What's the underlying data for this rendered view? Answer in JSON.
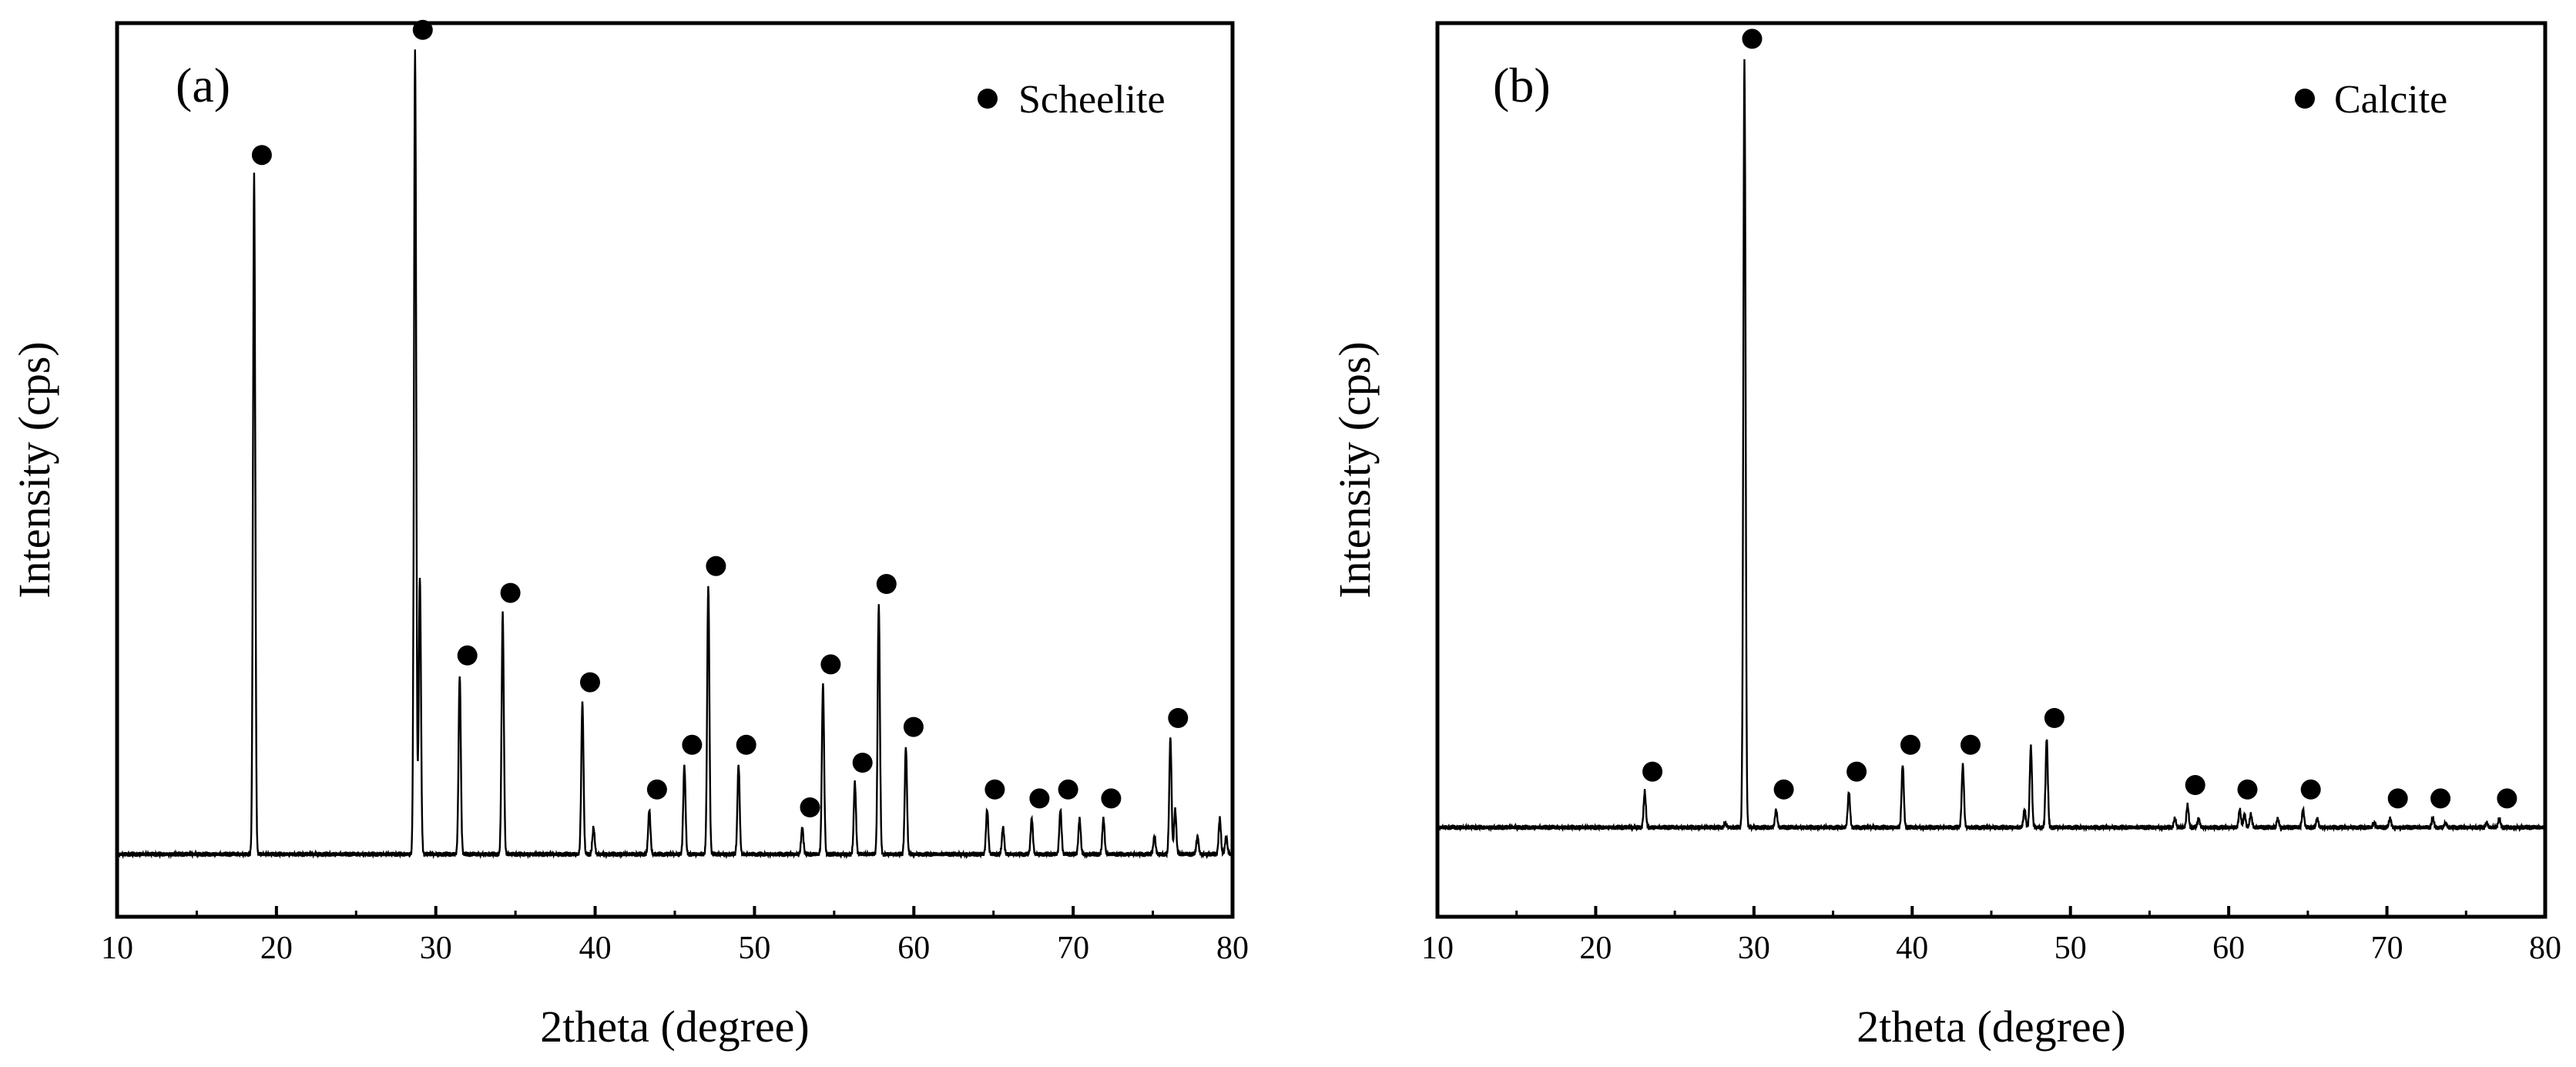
{
  "figure": {
    "background": "#ffffff",
    "line_color": "#000000"
  },
  "chart_data": [
    {
      "type": "line",
      "panel_label": "(a)",
      "legend": "Scheelite",
      "xlabel": "2theta (degree)",
      "ylabel": "Intensity (cps)",
      "xlim": [
        10,
        80
      ],
      "ylim": [
        0,
        100
      ],
      "x_ticks": [
        10,
        20,
        30,
        40,
        50,
        60,
        70,
        80
      ],
      "y_ticks_labeled": false,
      "grid": false,
      "baseline": 7,
      "peaks": [
        {
          "x": 18.6,
          "y": 83,
          "marked": true
        },
        {
          "x": 28.7,
          "y": 97,
          "marked": true
        },
        {
          "x": 29.0,
          "y": 38,
          "marked": false
        },
        {
          "x": 31.5,
          "y": 27,
          "marked": true
        },
        {
          "x": 34.2,
          "y": 34,
          "marked": true
        },
        {
          "x": 39.2,
          "y": 24,
          "marked": true
        },
        {
          "x": 39.9,
          "y": 10,
          "marked": false
        },
        {
          "x": 43.4,
          "y": 12,
          "marked": true
        },
        {
          "x": 45.6,
          "y": 17,
          "marked": true
        },
        {
          "x": 47.1,
          "y": 37,
          "marked": true
        },
        {
          "x": 49.0,
          "y": 17,
          "marked": true
        },
        {
          "x": 53.0,
          "y": 10,
          "marked": true
        },
        {
          "x": 54.3,
          "y": 26,
          "marked": true
        },
        {
          "x": 56.3,
          "y": 15,
          "marked": true
        },
        {
          "x": 57.8,
          "y": 35,
          "marked": true
        },
        {
          "x": 59.5,
          "y": 19,
          "marked": true
        },
        {
          "x": 64.6,
          "y": 12,
          "marked": true
        },
        {
          "x": 65.6,
          "y": 10,
          "marked": false
        },
        {
          "x": 67.4,
          "y": 11,
          "marked": true
        },
        {
          "x": 69.2,
          "y": 12,
          "marked": true
        },
        {
          "x": 70.4,
          "y": 11,
          "marked": false
        },
        {
          "x": 71.9,
          "y": 11,
          "marked": true
        },
        {
          "x": 75.1,
          "y": 9,
          "marked": false
        },
        {
          "x": 76.1,
          "y": 20,
          "marked": true
        },
        {
          "x": 76.4,
          "y": 12,
          "marked": false
        },
        {
          "x": 77.8,
          "y": 9,
          "marked": false
        },
        {
          "x": 79.2,
          "y": 11,
          "marked": false
        },
        {
          "x": 79.6,
          "y": 9,
          "marked": false
        }
      ]
    },
    {
      "type": "line",
      "panel_label": "(b)",
      "legend": "Calcite",
      "xlabel": "2theta (degree)",
      "ylabel": "Intensity (cps)",
      "xlim": [
        10,
        80
      ],
      "ylim": [
        0,
        100
      ],
      "x_ticks": [
        10,
        20,
        30,
        40,
        50,
        60,
        70,
        80
      ],
      "y_ticks_labeled": false,
      "grid": false,
      "baseline": 10,
      "peaks": [
        {
          "x": 23.1,
          "y": 14,
          "marked": true
        },
        {
          "x": 28.2,
          "y": 10.5,
          "marked": false
        },
        {
          "x": 29.4,
          "y": 96,
          "marked": true
        },
        {
          "x": 31.4,
          "y": 12,
          "marked": true
        },
        {
          "x": 36.0,
          "y": 14,
          "marked": true
        },
        {
          "x": 39.4,
          "y": 17,
          "marked": true
        },
        {
          "x": 43.2,
          "y": 17,
          "marked": true
        },
        {
          "x": 47.1,
          "y": 12,
          "marked": false
        },
        {
          "x": 47.5,
          "y": 19,
          "marked": false
        },
        {
          "x": 48.5,
          "y": 20,
          "marked": true
        },
        {
          "x": 56.6,
          "y": 11,
          "marked": false
        },
        {
          "x": 57.4,
          "y": 12.5,
          "marked": true
        },
        {
          "x": 58.1,
          "y": 11,
          "marked": false
        },
        {
          "x": 60.7,
          "y": 12,
          "marked": true
        },
        {
          "x": 61.0,
          "y": 11.5,
          "marked": false
        },
        {
          "x": 61.4,
          "y": 11.5,
          "marked": false
        },
        {
          "x": 63.1,
          "y": 11,
          "marked": false
        },
        {
          "x": 64.7,
          "y": 12,
          "marked": true
        },
        {
          "x": 65.6,
          "y": 11,
          "marked": false
        },
        {
          "x": 69.2,
          "y": 10.5,
          "marked": false
        },
        {
          "x": 70.2,
          "y": 11,
          "marked": true
        },
        {
          "x": 72.9,
          "y": 11,
          "marked": true
        },
        {
          "x": 73.7,
          "y": 10.5,
          "marked": false
        },
        {
          "x": 76.3,
          "y": 10.5,
          "marked": false
        },
        {
          "x": 77.1,
          "y": 11,
          "marked": true
        }
      ]
    }
  ]
}
